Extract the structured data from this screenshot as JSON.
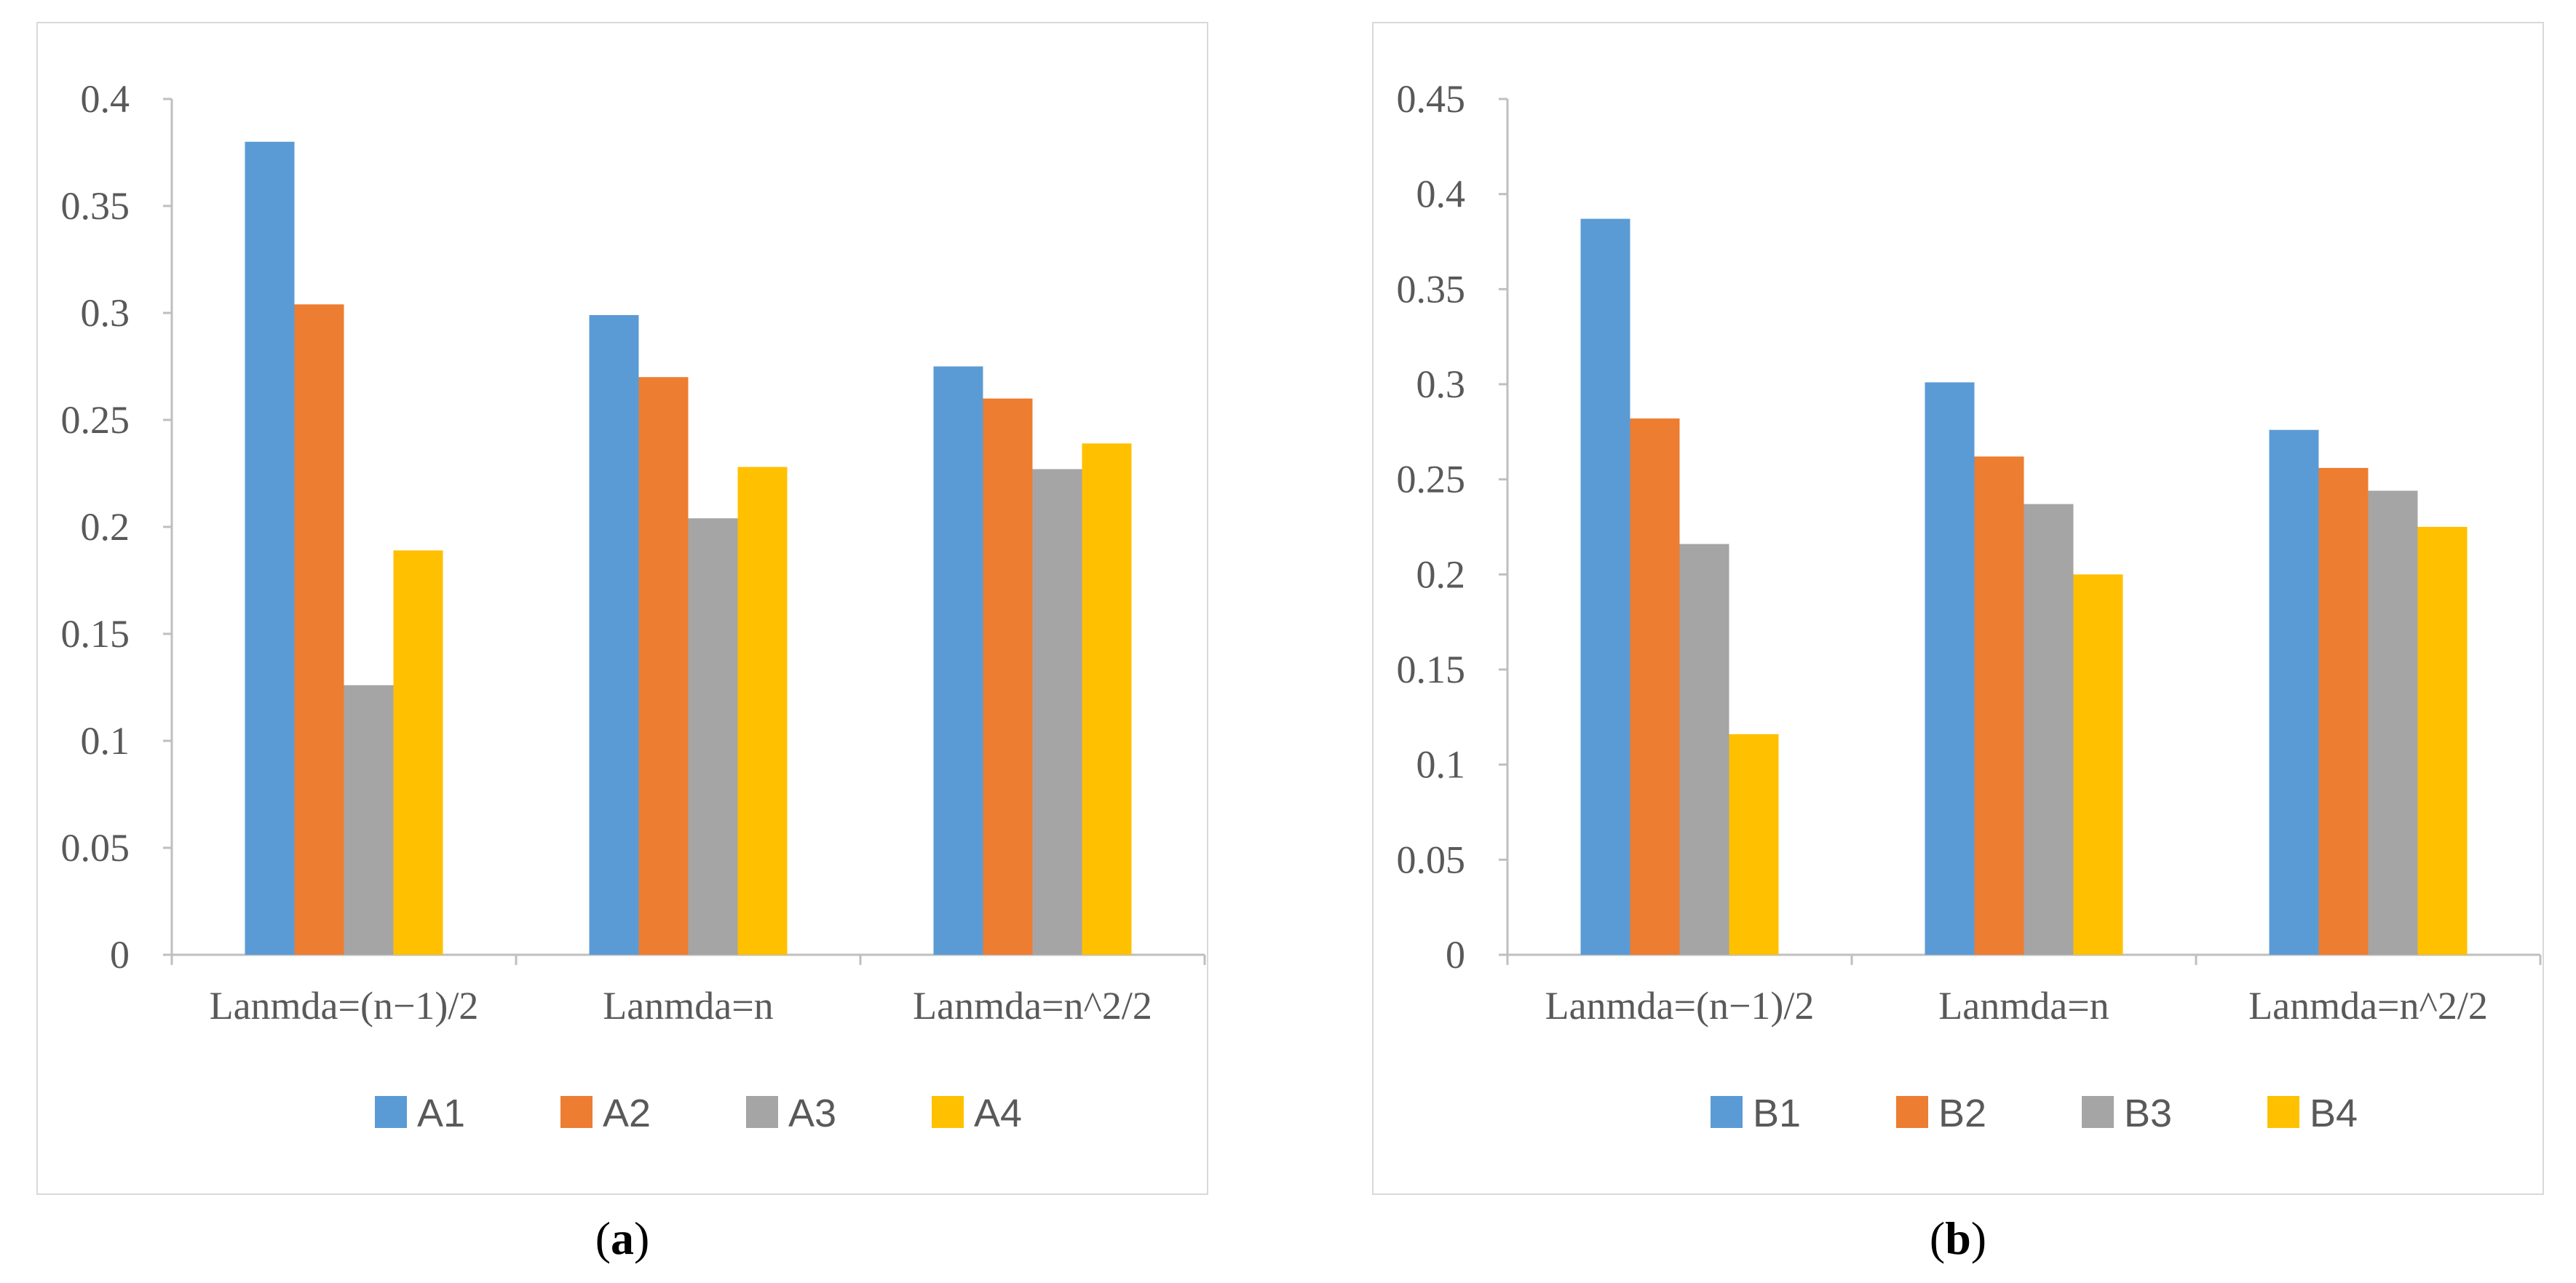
{
  "chart_data": [
    {
      "type": "bar",
      "panel_label": "a",
      "categories": [
        "Lanmda=(n−1)/2",
        "Lanmda=n",
        "Lanmda=n^2/2"
      ],
      "series": [
        {
          "name": "A1",
          "values": [
            0.38,
            0.299,
            0.275
          ],
          "color": "#5b9bd5"
        },
        {
          "name": "A2",
          "values": [
            0.304,
            0.27,
            0.26
          ],
          "color": "#ed7d31"
        },
        {
          "name": "A3",
          "values": [
            0.126,
            0.204,
            0.227
          ],
          "color": "#a5a5a5"
        },
        {
          "name": "A4",
          "values": [
            0.189,
            0.228,
            0.239
          ],
          "color": "#ffc000"
        }
      ],
      "yticks": [
        "0",
        "0.05",
        "0.1",
        "0.15",
        "0.2",
        "0.25",
        "0.3",
        "0.35",
        "0.4"
      ],
      "ylim": [
        0,
        0.4
      ],
      "legend": "bottom",
      "grid": false
    },
    {
      "type": "bar",
      "panel_label": "b",
      "categories": [
        "Lanmda=(n−1)/2",
        "Lanmda=n",
        "Lanmda=n^2/2"
      ],
      "series": [
        {
          "name": "B1",
          "values": [
            0.387,
            0.301,
            0.276
          ],
          "color": "#5b9bd5"
        },
        {
          "name": "B2",
          "values": [
            0.282,
            0.262,
            0.256
          ],
          "color": "#ed7d31"
        },
        {
          "name": "B3",
          "values": [
            0.216,
            0.237,
            0.244
          ],
          "color": "#a5a5a5"
        },
        {
          "name": "B4",
          "values": [
            0.116,
            0.2,
            0.225
          ],
          "color": "#ffc000"
        }
      ],
      "yticks": [
        "0",
        "0.05",
        "0.1",
        "0.15",
        "0.2",
        "0.25",
        "0.3",
        "0.35",
        "0.4",
        "0.45"
      ],
      "ylim": [
        0,
        0.45
      ],
      "legend": "bottom",
      "grid": false
    }
  ]
}
